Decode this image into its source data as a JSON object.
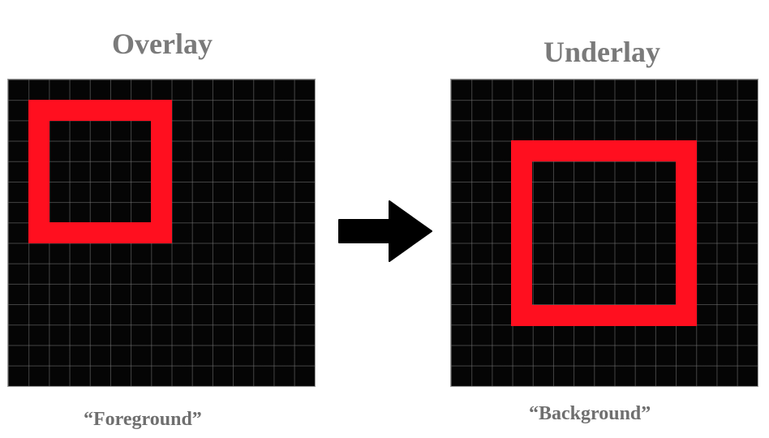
{
  "overlay": {
    "title": "Overlay",
    "caption": "“Foreground”"
  },
  "underlay": {
    "title": "Underlay",
    "caption": "“Background”"
  },
  "colors": {
    "grid_background": "#050505",
    "square_outline": "#ff0f1f",
    "title_text": "#7a7a7a",
    "arrow": "#000000"
  },
  "icons": {
    "transition": "right-arrow-icon"
  }
}
